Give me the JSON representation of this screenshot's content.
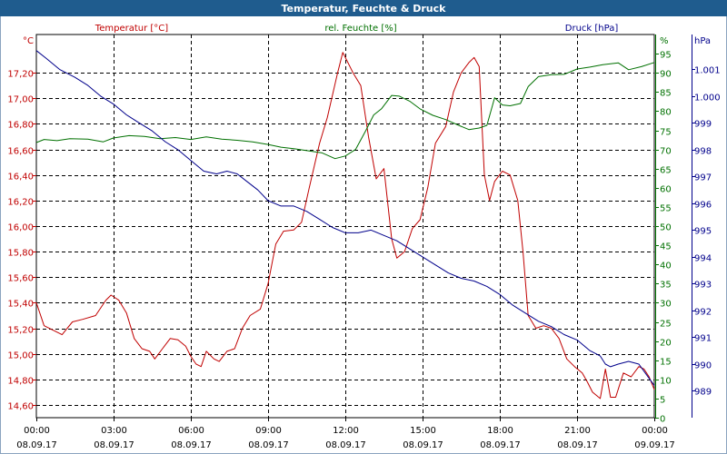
{
  "window": {
    "title": "Temperatur, Feuchte & Druck"
  },
  "chart_data": {
    "type": "line",
    "title": "Temperatur, Feuchte & Druck",
    "colors": {
      "temp": "#c00000",
      "hum": "#007000",
      "press": "#00008b",
      "grid": "#000000"
    },
    "x": {
      "range_hours": [
        0,
        24
      ],
      "ticks": [
        {
          "time": "00:00",
          "date": "08.09.17"
        },
        {
          "time": "03:00",
          "date": "08.09.17"
        },
        {
          "time": "06:00",
          "date": "08.09.17"
        },
        {
          "time": "09:00",
          "date": "08.09.17"
        },
        {
          "time": "12:00",
          "date": "08.09.17"
        },
        {
          "time": "15:00",
          "date": "08.09.17"
        },
        {
          "time": "18:00",
          "date": "08.09.17"
        },
        {
          "time": "21:00",
          "date": "08.09.17"
        },
        {
          "time": "00:00",
          "date": "09.09.17"
        }
      ]
    },
    "axes": {
      "temp": {
        "unit": "°C",
        "label": "Temperatur [°C]",
        "range": [
          14.5,
          17.5
        ],
        "ticks": [
          "14,60",
          "14,80",
          "15,00",
          "15,20",
          "15,40",
          "15,60",
          "15,80",
          "16,00",
          "16,20",
          "16,40",
          "16,60",
          "16,80",
          "17,00",
          "17,20"
        ],
        "tick_values": [
          14.6,
          14.8,
          15.0,
          15.2,
          15.4,
          15.6,
          15.8,
          16.0,
          16.2,
          16.4,
          16.6,
          16.8,
          17.0,
          17.2
        ]
      },
      "hum": {
        "unit": "%",
        "label": "rel. Feuchte [%]",
        "range": [
          0,
          100
        ],
        "ticks": [
          "0",
          "5",
          "10",
          "15",
          "20",
          "25",
          "30",
          "35",
          "40",
          "45",
          "50",
          "55",
          "60",
          "65",
          "70",
          "75",
          "80",
          "85",
          "90",
          "95"
        ],
        "tick_values": [
          0,
          5,
          10,
          15,
          20,
          25,
          30,
          35,
          40,
          45,
          50,
          55,
          60,
          65,
          70,
          75,
          80,
          85,
          90,
          95
        ]
      },
      "press": {
        "unit": "hPa",
        "label": "Druck [hPa]",
        "range": [
          988,
          1002.3
        ],
        "ticks": [
          "989",
          "990",
          "991",
          "992",
          "993",
          "994",
          "995",
          "996",
          "997",
          "998",
          "999",
          "1.000",
          "1.001"
        ],
        "tick_values": [
          989,
          990,
          991,
          992,
          993,
          994,
          995,
          996,
          997,
          998,
          999,
          1000,
          1001
        ]
      }
    },
    "series": [
      {
        "name": "Temperatur [°C]",
        "key": "temp",
        "points": [
          [
            0,
            15.4
          ],
          [
            0.3,
            15.22
          ],
          [
            0.7,
            15.18
          ],
          [
            1.0,
            15.15
          ],
          [
            1.4,
            15.25
          ],
          [
            1.8,
            15.27
          ],
          [
            2.3,
            15.3
          ],
          [
            2.7,
            15.42
          ],
          [
            2.9,
            15.46
          ],
          [
            3.2,
            15.42
          ],
          [
            3.5,
            15.32
          ],
          [
            3.8,
            15.12
          ],
          [
            4.1,
            15.04
          ],
          [
            4.4,
            15.02
          ],
          [
            4.6,
            14.96
          ],
          [
            4.9,
            15.04
          ],
          [
            5.2,
            15.12
          ],
          [
            5.5,
            15.11
          ],
          [
            5.8,
            15.06
          ],
          [
            6.0,
            14.98
          ],
          [
            6.2,
            14.92
          ],
          [
            6.4,
            14.9
          ],
          [
            6.6,
            15.02
          ],
          [
            6.9,
            14.96
          ],
          [
            7.1,
            14.94
          ],
          [
            7.4,
            15.02
          ],
          [
            7.7,
            15.04
          ],
          [
            8.0,
            15.2
          ],
          [
            8.3,
            15.3
          ],
          [
            8.7,
            15.35
          ],
          [
            9.0,
            15.55
          ],
          [
            9.3,
            15.86
          ],
          [
            9.6,
            15.96
          ],
          [
            10.0,
            15.97
          ],
          [
            10.3,
            16.03
          ],
          [
            10.6,
            16.3
          ],
          [
            11.0,
            16.65
          ],
          [
            11.3,
            16.85
          ],
          [
            11.7,
            17.2
          ],
          [
            11.9,
            17.36
          ],
          [
            12.3,
            17.2
          ],
          [
            12.6,
            17.1
          ],
          [
            12.9,
            16.7
          ],
          [
            13.2,
            16.37
          ],
          [
            13.5,
            16.45
          ],
          [
            13.8,
            15.9
          ],
          [
            14.0,
            15.75
          ],
          [
            14.3,
            15.8
          ],
          [
            14.6,
            15.98
          ],
          [
            14.9,
            16.05
          ],
          [
            15.2,
            16.3
          ],
          [
            15.5,
            16.65
          ],
          [
            15.9,
            16.78
          ],
          [
            16.2,
            17.05
          ],
          [
            16.5,
            17.2
          ],
          [
            16.8,
            17.28
          ],
          [
            17.0,
            17.32
          ],
          [
            17.2,
            17.25
          ],
          [
            17.4,
            16.4
          ],
          [
            17.6,
            16.2
          ],
          [
            17.8,
            16.35
          ],
          [
            18.1,
            16.43
          ],
          [
            18.4,
            16.4
          ],
          [
            18.7,
            16.2
          ],
          [
            18.9,
            15.8
          ],
          [
            19.1,
            15.3
          ],
          [
            19.4,
            15.2
          ],
          [
            19.7,
            15.22
          ],
          [
            20.0,
            15.2
          ],
          [
            20.3,
            15.12
          ],
          [
            20.6,
            14.96
          ],
          [
            20.9,
            14.9
          ],
          [
            21.2,
            14.85
          ],
          [
            21.4,
            14.78
          ],
          [
            21.6,
            14.7
          ],
          [
            21.9,
            14.65
          ],
          [
            22.1,
            14.88
          ],
          [
            22.3,
            14.66
          ],
          [
            22.5,
            14.66
          ],
          [
            22.8,
            14.85
          ],
          [
            23.1,
            14.82
          ],
          [
            23.4,
            14.9
          ],
          [
            23.6,
            14.88
          ],
          [
            23.8,
            14.82
          ],
          [
            24.0,
            14.72
          ]
        ]
      },
      {
        "name": "rel. Feuchte [%]",
        "key": "hum",
        "points": [
          [
            0,
            71.8
          ],
          [
            0.3,
            72.6
          ],
          [
            0.8,
            72.3
          ],
          [
            1.3,
            72.8
          ],
          [
            2.0,
            72.7
          ],
          [
            2.6,
            72.0
          ],
          [
            3.0,
            73.0
          ],
          [
            3.6,
            73.6
          ],
          [
            4.2,
            73.4
          ],
          [
            4.8,
            72.8
          ],
          [
            5.4,
            73.1
          ],
          [
            6.0,
            72.6
          ],
          [
            6.6,
            73.3
          ],
          [
            7.2,
            72.7
          ],
          [
            7.8,
            72.4
          ],
          [
            8.4,
            72.0
          ],
          [
            9.0,
            71.3
          ],
          [
            9.5,
            70.6
          ],
          [
            10.0,
            70.2
          ],
          [
            10.6,
            69.6
          ],
          [
            11.1,
            69.1
          ],
          [
            11.6,
            67.6
          ],
          [
            12.0,
            68.3
          ],
          [
            12.4,
            70.0
          ],
          [
            12.8,
            75.0
          ],
          [
            13.1,
            79.0
          ],
          [
            13.4,
            80.6
          ],
          [
            13.8,
            84.1
          ],
          [
            14.1,
            83.9
          ],
          [
            14.5,
            82.6
          ],
          [
            14.9,
            80.6
          ],
          [
            15.4,
            78.9
          ],
          [
            15.9,
            77.8
          ],
          [
            16.4,
            76.3
          ],
          [
            16.8,
            75.2
          ],
          [
            17.2,
            75.6
          ],
          [
            17.5,
            76.3
          ],
          [
            17.8,
            83.5
          ],
          [
            18.1,
            81.6
          ],
          [
            18.4,
            81.4
          ],
          [
            18.8,
            82.0
          ],
          [
            19.1,
            86.4
          ],
          [
            19.5,
            89.0
          ],
          [
            20.0,
            89.5
          ],
          [
            20.5,
            89.6
          ],
          [
            21.0,
            91.0
          ],
          [
            21.5,
            91.5
          ],
          [
            22.0,
            92.1
          ],
          [
            22.6,
            92.6
          ],
          [
            23.0,
            90.8
          ],
          [
            23.5,
            91.6
          ],
          [
            24.0,
            92.7
          ]
        ]
      },
      {
        "name": "Druck [hPa]",
        "key": "press",
        "points": [
          [
            0,
            1001.7
          ],
          [
            0.4,
            1001.4
          ],
          [
            0.9,
            1001.0
          ],
          [
            1.5,
            1000.7
          ],
          [
            2.0,
            1000.4
          ],
          [
            2.5,
            1000.0
          ],
          [
            3.0,
            999.7
          ],
          [
            3.5,
            999.3
          ],
          [
            4.0,
            999.0
          ],
          [
            4.5,
            998.7
          ],
          [
            5.0,
            998.3
          ],
          [
            5.5,
            998.0
          ],
          [
            6.0,
            997.6
          ],
          [
            6.5,
            997.2
          ],
          [
            7.0,
            997.1
          ],
          [
            7.4,
            997.2
          ],
          [
            7.8,
            997.1
          ],
          [
            8.2,
            996.8
          ],
          [
            8.6,
            996.5
          ],
          [
            9.0,
            996.1
          ],
          [
            9.5,
            995.9
          ],
          [
            10.0,
            995.9
          ],
          [
            10.5,
            995.7
          ],
          [
            11.0,
            995.4
          ],
          [
            11.5,
            995.1
          ],
          [
            12.0,
            994.9
          ],
          [
            12.5,
            994.9
          ],
          [
            13.0,
            995.0
          ],
          [
            13.5,
            994.8
          ],
          [
            14.0,
            994.6
          ],
          [
            14.5,
            994.3
          ],
          [
            15.0,
            994.0
          ],
          [
            15.5,
            993.7
          ],
          [
            16.0,
            993.4
          ],
          [
            16.5,
            993.2
          ],
          [
            17.0,
            993.1
          ],
          [
            17.5,
            992.9
          ],
          [
            18.0,
            992.6
          ],
          [
            18.5,
            992.2
          ],
          [
            19.0,
            991.9
          ],
          [
            19.5,
            991.6
          ],
          [
            20.0,
            991.4
          ],
          [
            20.5,
            991.1
          ],
          [
            21.0,
            990.9
          ],
          [
            21.5,
            990.5
          ],
          [
            21.9,
            990.3
          ],
          [
            22.1,
            990.0
          ],
          [
            22.3,
            989.9
          ],
          [
            22.6,
            990.0
          ],
          [
            23.0,
            990.1
          ],
          [
            23.4,
            990.0
          ],
          [
            23.7,
            989.6
          ],
          [
            24.0,
            989.2
          ]
        ]
      }
    ]
  }
}
